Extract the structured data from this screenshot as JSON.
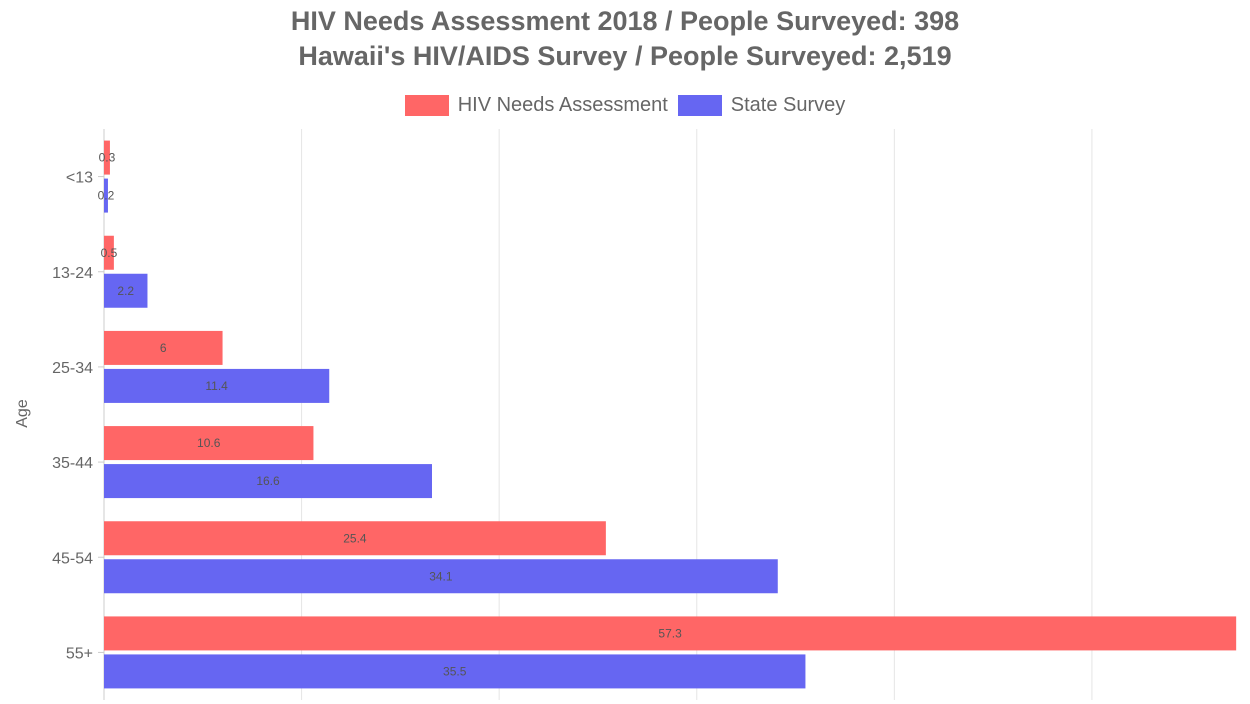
{
  "title": {
    "line1": "HIV Needs Assessment 2018 / People Surveyed: 398",
    "line2": "Hawaii's HIV/AIDS Survey / People Surveyed: 2,519"
  },
  "colors": {
    "needs_assessment": "#ff6666",
    "state_survey": "#6666f2",
    "grid": "#e5e5e5",
    "text": "#666666"
  },
  "chart_data": {
    "type": "bar",
    "orientation": "horizontal",
    "title": "HIV Needs Assessment 2018 / People Surveyed: 398 | Hawaii's HIV/AIDS Survey / People Surveyed: 2,519",
    "ylabel": "Age",
    "xlabel": "",
    "categories": [
      "<13",
      "13-24",
      "25-34",
      "35-44",
      "45-54",
      "55+"
    ],
    "series": [
      {
        "name": "HIV Needs Assessment",
        "color": "#ff6666",
        "values": [
          0.3,
          0.5,
          6,
          10.6,
          25.4,
          57.3
        ]
      },
      {
        "name": "State Survey",
        "color": "#6666f2",
        "values": [
          0.2,
          2.2,
          11.4,
          16.6,
          34.1,
          35.5
        ]
      }
    ],
    "xlim": [
      0,
      58
    ],
    "grid": true,
    "legend": "top-center",
    "data_labels": true
  }
}
